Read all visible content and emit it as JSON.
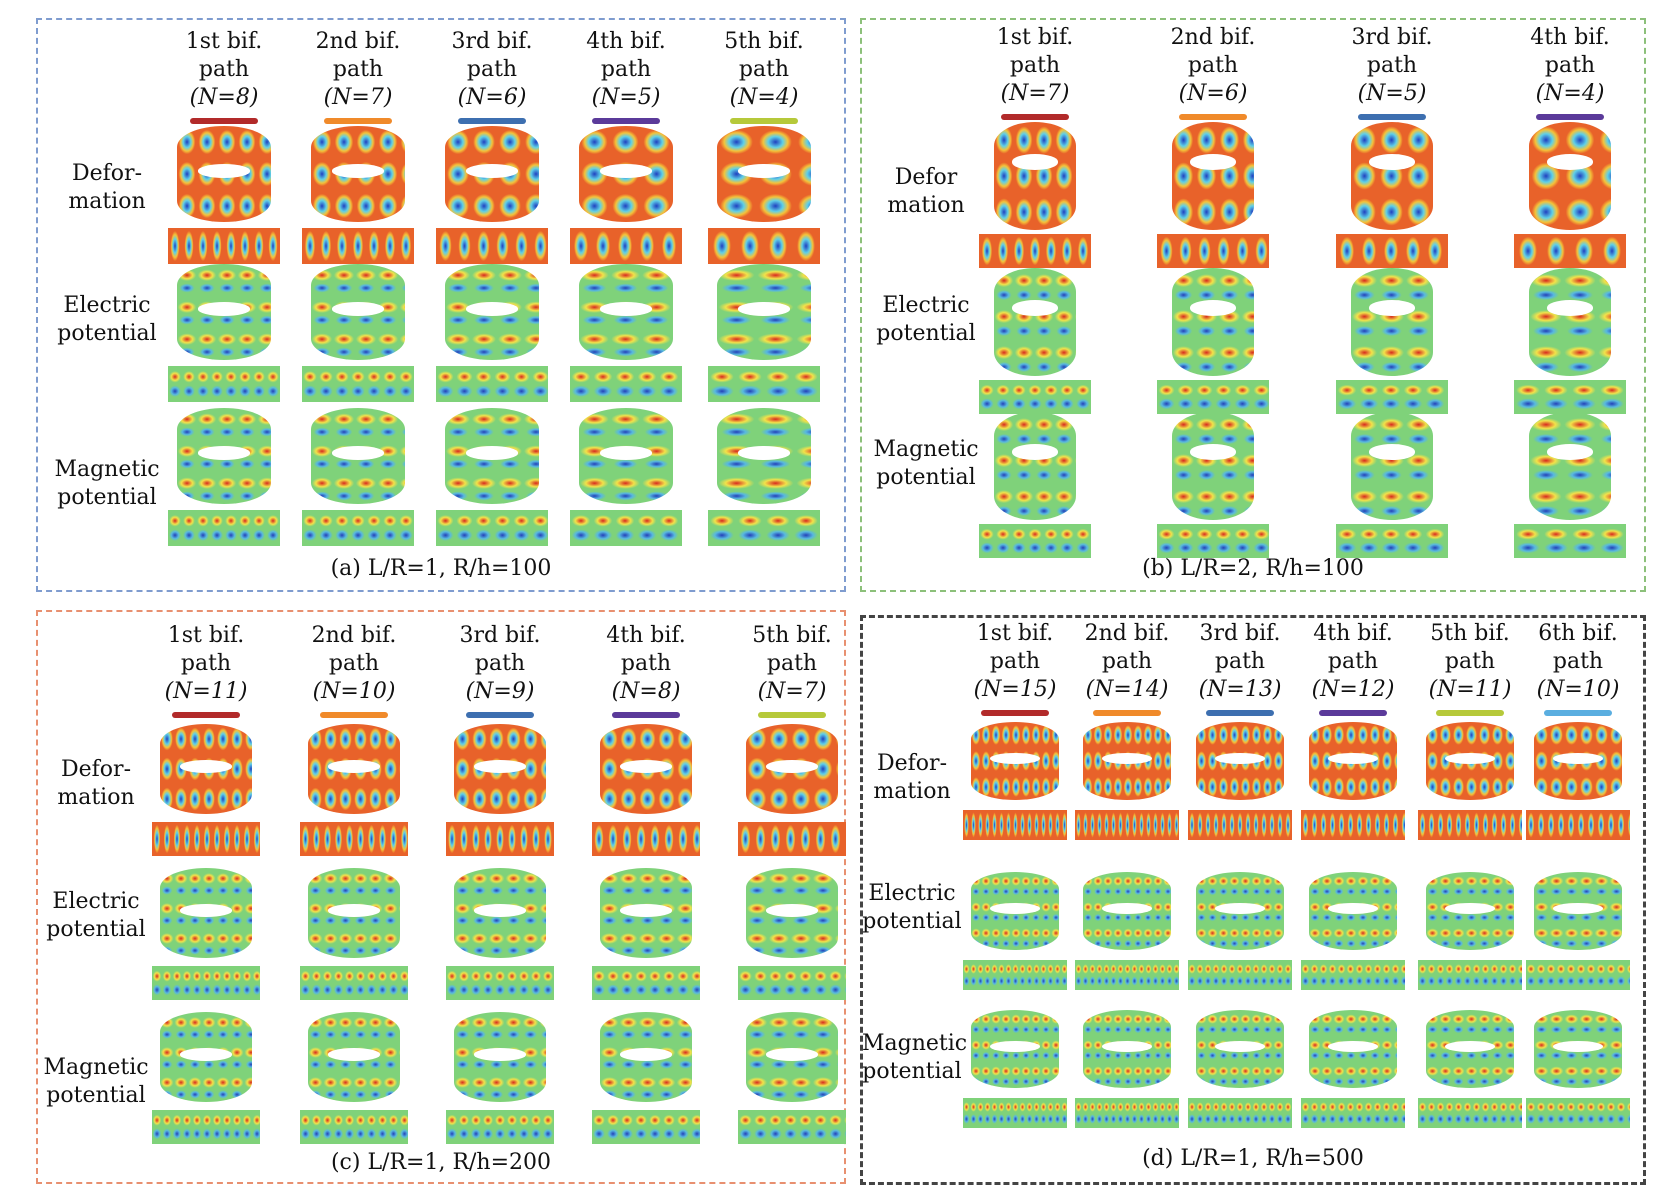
{
  "colors": {
    "bars": [
      "#b22a2a",
      "#f08a2a",
      "#3d6fb0",
      "#5b3a9a",
      "#b6c93a",
      "#5aaee0"
    ],
    "deformation": {
      "base": "#e8622a",
      "mid": "#f4c33a",
      "dark": "#2040c0",
      "light": "#5fd0e8"
    },
    "potential": {
      "base": "#7fd27a",
      "mid": "#f2e24a",
      "dark": "#2340b8",
      "hot": "#d8281f"
    },
    "borders": {
      "a": "#7f9ccf",
      "b": "#8cc07a",
      "c": "#e89070",
      "d": "#444444"
    }
  },
  "panels": [
    {
      "id": "a",
      "row_labels": [
        "Defor-\nmation",
        "Electric\npotential",
        "Magnetic\npotential"
      ],
      "columns": [
        {
          "h1": "1st bif.",
          "h2": "path",
          "h3": "(N=8)"
        },
        {
          "h1": "2nd bif.",
          "h2": "path",
          "h3": "(N=7)"
        },
        {
          "h1": "3rd bif.",
          "h2": "path",
          "h3": "(N=6)"
        },
        {
          "h1": "4th bif.",
          "h2": "path",
          "h3": "(N=5)"
        },
        {
          "h1": "5th bif.",
          "h2": "path",
          "h3": "(N=4)"
        }
      ],
      "caption": "(a) L/R=1, R/h=100"
    },
    {
      "id": "b",
      "row_labels": [
        "Defor\nmation",
        "Electric\npotential",
        "Magnetic\npotential"
      ],
      "columns": [
        {
          "h1": "1st bif.",
          "h2": "path",
          "h3": "(N=7)"
        },
        {
          "h1": "2nd bif.",
          "h2": "path",
          "h3": "(N=6)"
        },
        {
          "h1": "3rd bif.",
          "h2": "path",
          "h3": "(N=5)"
        },
        {
          "h1": "4th bif.",
          "h2": "path",
          "h3": "(N=4)"
        }
      ],
      "caption": "(b) L/R=2, R/h=100"
    },
    {
      "id": "c",
      "row_labels": [
        "Defor-\nmation",
        "Electric\npotential",
        "Magnetic\npotential"
      ],
      "columns": [
        {
          "h1": "1st bif.",
          "h2": "path",
          "h3": "(N=11)"
        },
        {
          "h1": "2nd bif.",
          "h2": "path",
          "h3": "(N=10)"
        },
        {
          "h1": "3rd bif.",
          "h2": "path",
          "h3": "(N=9)"
        },
        {
          "h1": "4th bif.",
          "h2": "path",
          "h3": "(N=8)"
        },
        {
          "h1": "5th bif.",
          "h2": "path",
          "h3": "(N=7)"
        }
      ],
      "caption": "(c) L/R=1, R/h=200"
    },
    {
      "id": "d",
      "row_labels": [
        "Defor-\nmation",
        "Electric\npotential",
        "Magnetic\npotential"
      ],
      "columns": [
        {
          "h1": "1st bif.",
          "h2": "path",
          "h3": "(N=15)"
        },
        {
          "h1": "2nd bif.",
          "h2": "path",
          "h3": "(N=14)"
        },
        {
          "h1": "3rd bif.",
          "h2": "path",
          "h3": "(N=13)"
        },
        {
          "h1": "4th bif.",
          "h2": "path",
          "h3": "(N=12)"
        },
        {
          "h1": "5th bif.",
          "h2": "path",
          "h3": "(N=11)"
        },
        {
          "h1": "6th bif.",
          "h2": "path",
          "h3": "(N=10)"
        }
      ],
      "caption": "(d) L/R=1, R/h=500"
    }
  ]
}
